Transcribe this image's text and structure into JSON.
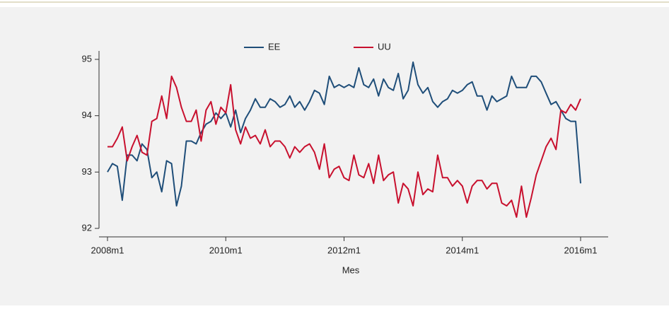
{
  "chart_data": {
    "type": "line",
    "x": [
      "2008m1",
      "2008m2",
      "2008m3",
      "2008m4",
      "2008m5",
      "2008m6",
      "2008m7",
      "2008m8",
      "2008m9",
      "2008m10",
      "2008m11",
      "2008m12",
      "2009m1",
      "2009m2",
      "2009m3",
      "2009m4",
      "2009m5",
      "2009m6",
      "2009m7",
      "2009m8",
      "2009m9",
      "2009m10",
      "2009m11",
      "2009m12",
      "2010m1",
      "2010m2",
      "2010m3",
      "2010m4",
      "2010m5",
      "2010m6",
      "2010m7",
      "2010m8",
      "2010m9",
      "2010m10",
      "2010m11",
      "2010m12",
      "2011m1",
      "2011m2",
      "2011m3",
      "2011m4",
      "2011m5",
      "2011m6",
      "2011m7",
      "2011m8",
      "2011m9",
      "2011m10",
      "2011m11",
      "2011m12",
      "2012m1",
      "2012m2",
      "2012m3",
      "2012m4",
      "2012m5",
      "2012m6",
      "2012m7",
      "2012m8",
      "2012m9",
      "2012m10",
      "2012m11",
      "2012m12",
      "2013m1",
      "2013m2",
      "2013m3",
      "2013m4",
      "2013m5",
      "2013m6",
      "2013m7",
      "2013m8",
      "2013m9",
      "2013m10",
      "2013m11",
      "2013m12",
      "2014m1",
      "2014m2",
      "2014m3",
      "2014m4",
      "2014m5",
      "2014m6",
      "2014m7",
      "2014m8",
      "2014m9",
      "2014m10",
      "2014m11",
      "2014m12",
      "2015m1",
      "2015m2",
      "2015m3",
      "2015m4",
      "2015m5",
      "2015m6",
      "2015m7",
      "2015m8",
      "2015m9",
      "2015m10",
      "2015m11",
      "2015m12",
      "2016m1"
    ],
    "series": [
      {
        "name": "EE",
        "color": "#1f4e79",
        "values": [
          93.0,
          93.15,
          93.1,
          92.5,
          93.3,
          93.3,
          93.2,
          93.5,
          93.4,
          92.9,
          93.0,
          92.65,
          93.2,
          93.15,
          92.4,
          92.75,
          93.55,
          93.55,
          93.5,
          93.7,
          93.85,
          93.9,
          94.05,
          93.95,
          94.05,
          93.8,
          94.1,
          93.7,
          93.95,
          94.1,
          94.3,
          94.15,
          94.15,
          94.3,
          94.25,
          94.15,
          94.2,
          94.35,
          94.15,
          94.25,
          94.1,
          94.25,
          94.45,
          94.4,
          94.2,
          94.7,
          94.5,
          94.55,
          94.5,
          94.55,
          94.5,
          94.85,
          94.55,
          94.5,
          94.65,
          94.35,
          94.65,
          94.5,
          94.45,
          94.75,
          94.3,
          94.45,
          94.95,
          94.55,
          94.4,
          94.5,
          94.25,
          94.15,
          94.25,
          94.3,
          94.45,
          94.4,
          94.45,
          94.55,
          94.6,
          94.35,
          94.35,
          94.1,
          94.35,
          94.25,
          94.3,
          94.35,
          94.7,
          94.5,
          94.5,
          94.5,
          94.7,
          94.7,
          94.6,
          94.4,
          94.2,
          94.25,
          94.1,
          93.95,
          93.9,
          93.9,
          92.8
        ]
      },
      {
        "name": "UU",
        "color": "#c8102e",
        "values": [
          93.45,
          93.45,
          93.6,
          93.8,
          93.2,
          93.45,
          93.65,
          93.35,
          93.3,
          93.9,
          93.95,
          94.35,
          93.95,
          94.7,
          94.5,
          94.15,
          93.9,
          93.9,
          94.1,
          93.55,
          94.1,
          94.25,
          93.85,
          94.15,
          94.05,
          94.55,
          93.75,
          93.5,
          93.8,
          93.6,
          93.65,
          93.5,
          93.75,
          93.45,
          93.55,
          93.55,
          93.45,
          93.25,
          93.45,
          93.35,
          93.45,
          93.5,
          93.35,
          93.05,
          93.5,
          92.9,
          93.05,
          93.1,
          92.9,
          92.85,
          93.3,
          92.95,
          92.9,
          93.15,
          92.8,
          93.3,
          92.85,
          92.95,
          93.0,
          92.45,
          92.8,
          92.7,
          92.4,
          93.0,
          92.6,
          92.7,
          92.65,
          93.3,
          92.9,
          92.9,
          92.75,
          92.85,
          92.75,
          92.45,
          92.75,
          92.85,
          92.85,
          92.7,
          92.8,
          92.8,
          92.45,
          92.4,
          92.5,
          92.2,
          92.75,
          92.2,
          92.55,
          92.95,
          93.2,
          93.45,
          93.6,
          93.4,
          94.1,
          94.05,
          94.2,
          94.1,
          94.3
        ]
      }
    ],
    "xticks": [
      "2008m1",
      "2010m1",
      "2012m1",
      "2014m1",
      "2016m1"
    ],
    "ylim": [
      92,
      95.15
    ],
    "yticks": [
      92,
      93,
      94,
      95
    ],
    "x_label": "Mes",
    "legend": "top",
    "grid": false
  }
}
